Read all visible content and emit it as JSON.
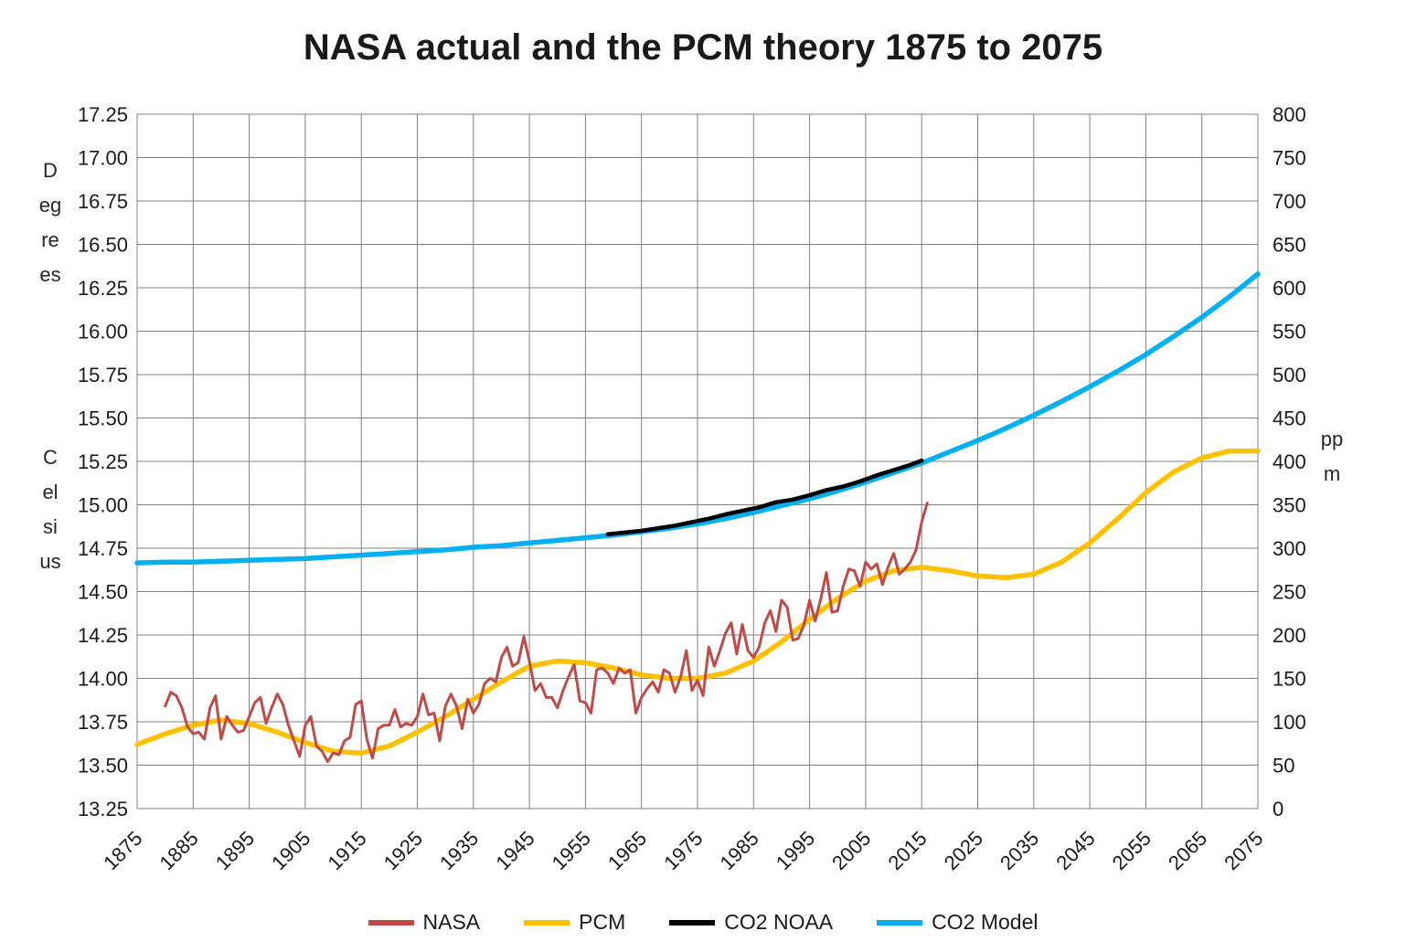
{
  "page": {
    "background": "#FFFFFF"
  },
  "chart_data": {
    "type": "line",
    "title": "NASA actual and the PCM theory 1875 to 2075",
    "grid": true,
    "legend_position": "bottom",
    "x_axis": {
      "min": 1875,
      "max": 2075,
      "tick_interval": 10,
      "tick_labels": [
        "1875",
        "1885",
        "1895",
        "1905",
        "1915",
        "1925",
        "1935",
        "1945",
        "1955",
        "1965",
        "1975",
        "1985",
        "1995",
        "2005",
        "2015",
        "2025",
        "2035",
        "2045",
        "2055",
        "2065",
        "2075"
      ]
    },
    "y_axis_left": {
      "title": "Degrees Celsius",
      "title_words": [
        "Degrees",
        "Celsius"
      ],
      "min": 13.25,
      "max": 17.25,
      "tick_interval": 0.25,
      "tick_labels": [
        "17.25",
        "17.00",
        "16.75",
        "16.50",
        "16.25",
        "16.00",
        "15.75",
        "15.50",
        "15.25",
        "15.00",
        "14.75",
        "14.50",
        "14.25",
        "14.00",
        "13.75",
        "13.50",
        "13.25"
      ]
    },
    "y_axis_right": {
      "title": "ppm",
      "min": 0,
      "max": 800,
      "tick_interval": 50,
      "tick_labels": [
        "800",
        "750",
        "700",
        "650",
        "600",
        "550",
        "500",
        "450",
        "400",
        "350",
        "300",
        "250",
        "200",
        "150",
        "100",
        "50",
        "0"
      ]
    },
    "series": [
      {
        "name": "NASA",
        "color": "#BE4B48",
        "axis": "left",
        "x_start": 1880,
        "x_step": 1,
        "values": [
          13.84,
          13.92,
          13.9,
          13.83,
          13.72,
          13.68,
          13.69,
          13.65,
          13.83,
          13.9,
          13.65,
          13.78,
          13.73,
          13.69,
          13.7,
          13.78,
          13.86,
          13.89,
          13.74,
          13.83,
          13.91,
          13.85,
          13.73,
          13.64,
          13.55,
          13.73,
          13.78,
          13.61,
          13.58,
          13.52,
          13.57,
          13.56,
          13.64,
          13.66,
          13.85,
          13.87,
          13.65,
          13.54,
          13.71,
          13.73,
          13.73,
          13.82,
          13.72,
          13.74,
          13.73,
          13.78,
          13.91,
          13.79,
          13.8,
          13.64,
          13.84,
          13.91,
          13.84,
          13.71,
          13.88,
          13.8,
          13.85,
          13.97,
          14.0,
          13.98,
          14.12,
          14.18,
          14.07,
          14.09,
          14.24,
          14.1,
          13.93,
          13.97,
          13.89,
          13.89,
          13.83,
          13.93,
          14.01,
          14.08,
          13.87,
          13.86,
          13.8,
          14.05,
          14.06,
          14.03,
          13.97,
          14.06,
          14.03,
          14.05,
          13.8,
          13.89,
          13.94,
          13.98,
          13.92,
          14.05,
          14.03,
          13.92,
          14.01,
          14.16,
          13.93,
          13.99,
          13.9,
          14.18,
          14.07,
          14.16,
          14.26,
          14.32,
          14.14,
          14.31,
          14.16,
          14.12,
          14.18,
          14.32,
          14.39,
          14.27,
          14.45,
          14.41,
          14.22,
          14.23,
          14.31,
          14.45,
          14.33,
          14.46,
          14.61,
          14.38,
          14.39,
          14.53,
          14.63,
          14.62,
          14.53,
          14.67,
          14.63,
          14.66,
          14.54,
          14.64,
          14.72,
          14.6,
          14.63,
          14.67,
          14.74,
          14.9,
          15.01
        ]
      },
      {
        "name": "PCM",
        "color": "#FFC000",
        "axis": "left",
        "x_start": 1875,
        "x_step": 5,
        "values": [
          13.62,
          13.68,
          13.73,
          13.76,
          13.74,
          13.69,
          13.63,
          13.58,
          13.57,
          13.61,
          13.69,
          13.78,
          13.88,
          13.98,
          14.07,
          14.1,
          14.09,
          14.06,
          14.02,
          14.0,
          14.0,
          14.03,
          14.1,
          14.21,
          14.34,
          14.46,
          14.56,
          14.62,
          14.64,
          14.62,
          14.59,
          14.58,
          14.6,
          14.67,
          14.78,
          14.92,
          15.07,
          15.19,
          15.27,
          15.31,
          15.31
        ]
      },
      {
        "name": "CO2 NOAA",
        "color": "#000000",
        "axis": "right",
        "x": [
          1959,
          1962,
          1965,
          1968,
          1971,
          1974,
          1977,
          1980,
          1983,
          1986,
          1989,
          1992,
          1995,
          1998,
          2001,
          2004,
          2007,
          2010,
          2013,
          2015
        ],
        "values": [
          316,
          318,
          320,
          323,
          326,
          330,
          334,
          339,
          343,
          347,
          353,
          356,
          361,
          367,
          371,
          377,
          384,
          390,
          396,
          401
        ]
      },
      {
        "name": "CO2 Model",
        "color": "#00B0F0",
        "axis": "right",
        "x_start": 1875,
        "x_step": 5,
        "values": [
          283,
          284,
          284,
          285,
          286,
          287,
          288,
          290,
          292,
          294,
          296,
          298,
          301,
          303,
          306,
          309,
          312,
          315,
          319,
          323,
          328,
          334,
          341,
          349,
          357,
          366,
          376,
          387,
          398,
          411,
          424,
          438,
          453,
          469,
          486,
          504,
          523,
          544,
          566,
          590,
          616
        ]
      }
    ]
  }
}
